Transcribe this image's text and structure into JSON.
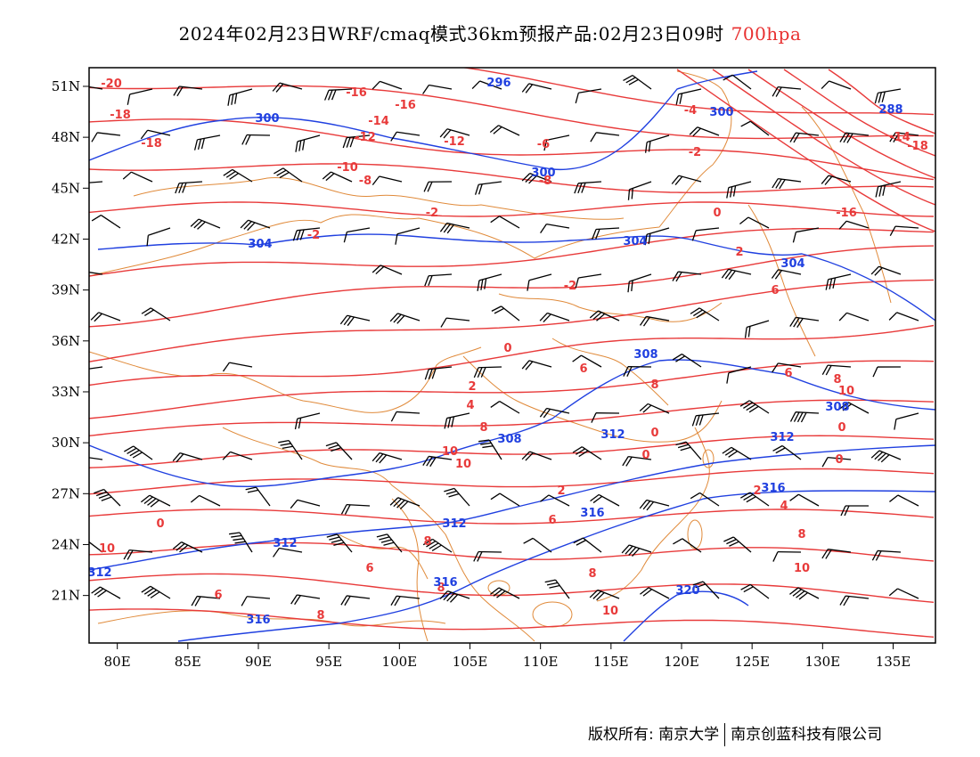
{
  "title": {
    "main": "2024年02月23日WRF/cmaq模式36km预报产品:02月23日09时",
    "level": "700hpa"
  },
  "axes": {
    "lat_labels": [
      "51N",
      "48N",
      "45N",
      "42N",
      "39N",
      "36N",
      "33N",
      "30N",
      "27N",
      "24N",
      "21N"
    ],
    "lon_labels": [
      "80E",
      "85E",
      "90E",
      "95E",
      "100E",
      "105E",
      "110E",
      "115E",
      "120E",
      "125E",
      "130E",
      "135E"
    ]
  },
  "colors": {
    "temperature": "#e83a3a",
    "height": "#2040e0",
    "boundary": "#e08a3a",
    "barb": "#000000"
  },
  "contours": {
    "temperature_labels": [
      "-20",
      "-18",
      "-16",
      "-14",
      "-12",
      "-10",
      "-8",
      "-6",
      "-4",
      "-2",
      "0",
      "2",
      "4",
      "6",
      "8",
      "10"
    ],
    "height_labels": [
      "288",
      "296",
      "300",
      "304",
      "308",
      "312",
      "316",
      "320"
    ]
  },
  "copyright": {
    "owner": "版权所有: 南京大学",
    "company": "南京创蓝科技有限公司"
  }
}
